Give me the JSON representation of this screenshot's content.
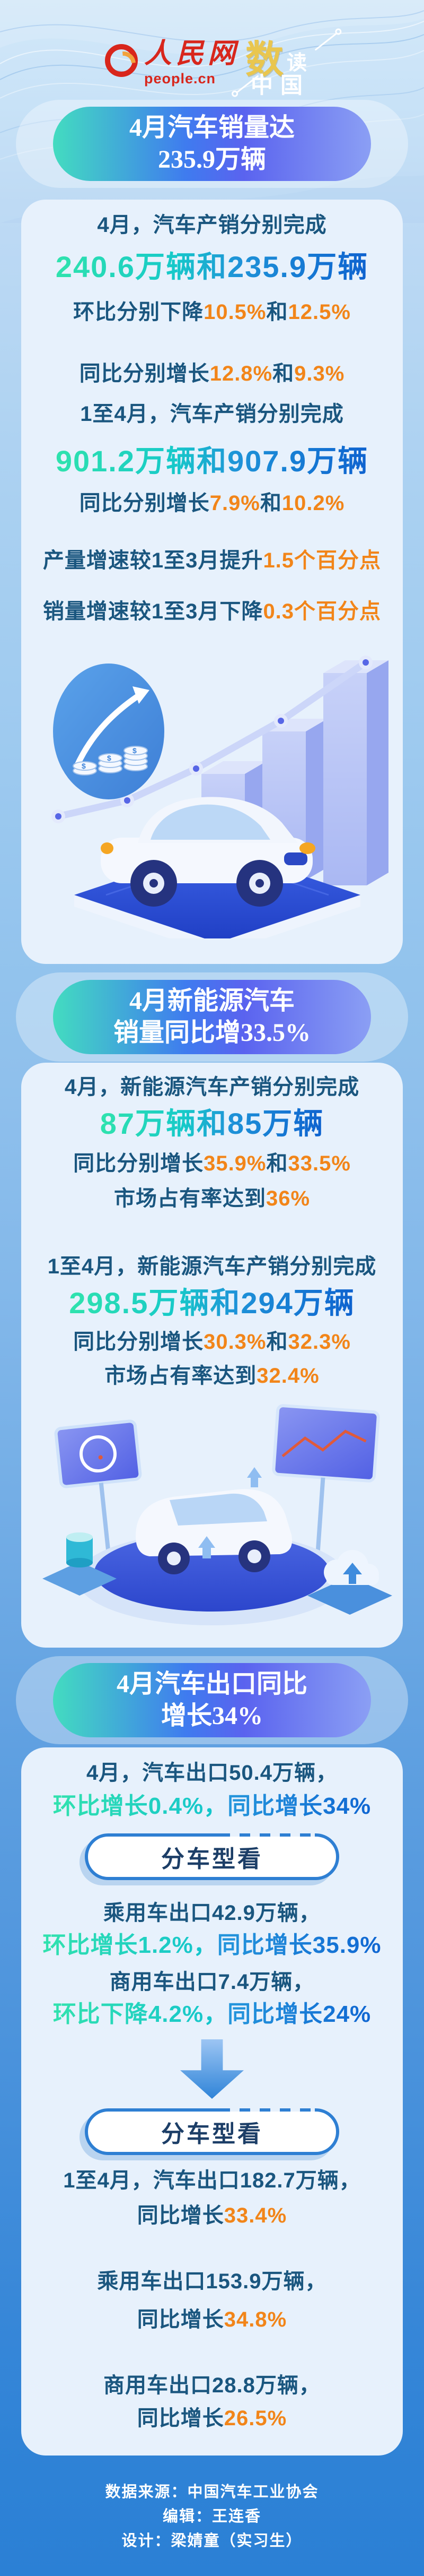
{
  "header": {
    "people_logo": {
      "cn": "人民网",
      "en": "people.cn"
    },
    "series_logo": {
      "char1": "数",
      "char2": "读",
      "char3": "中国"
    }
  },
  "colors": {
    "navy_text": "#1a567f",
    "orange_accent": "#f28519",
    "teal_accent": "#2fe3ad",
    "blue_accent": "#0f66d2",
    "pill_gradient": [
      "#43dcc0",
      "#3f7bef",
      "#8b9ff4"
    ],
    "card_background": "#e7f1fc",
    "footer_background": "#2b80d5",
    "people_logo_red": "#d8261c",
    "series_gold": "#e9c64f"
  },
  "icons": {
    "dollar": "$"
  },
  "sections": [
    {
      "pill": [
        "4月汽车销量达",
        "235.9万辆"
      ],
      "illustration": "car-bar-chart",
      "lines": [
        {
          "type": "body",
          "segments": [
            {
              "text": "4月，汽车产销分别完成",
              "role": "navy"
            }
          ]
        },
        {
          "type": "big",
          "segments": [
            {
              "text": "240.6万辆和235.9万辆",
              "role": "grad"
            }
          ]
        },
        {
          "type": "body",
          "segments": [
            {
              "text": "环比分别下降",
              "role": "navy"
            },
            {
              "text": "10.5%",
              "role": "orange"
            },
            {
              "text": "和",
              "role": "navy"
            },
            {
              "text": "12.5%",
              "role": "orange"
            }
          ]
        },
        {
          "type": "body",
          "segments": [
            {
              "text": "同比分别增长",
              "role": "navy"
            },
            {
              "text": "12.8%",
              "role": "orange"
            },
            {
              "text": "和",
              "role": "navy"
            },
            {
              "text": "9.3%",
              "role": "orange"
            }
          ]
        },
        {
          "type": "body",
          "segments": [
            {
              "text": "1至4月，汽车产销分别完成",
              "role": "navy"
            }
          ]
        },
        {
          "type": "big",
          "segments": [
            {
              "text": "901.2万辆和907.9万辆",
              "role": "grad"
            }
          ]
        },
        {
          "type": "body",
          "segments": [
            {
              "text": "同比分别增长",
              "role": "navy"
            },
            {
              "text": "7.9%",
              "role": "orange"
            },
            {
              "text": "和",
              "role": "navy"
            },
            {
              "text": "10.2%",
              "role": "orange"
            }
          ]
        },
        {
          "type": "body",
          "segments": [
            {
              "text": "产量增速较1至3月提升",
              "role": "navy"
            },
            {
              "text": "1.5个百分点",
              "role": "orange"
            }
          ]
        },
        {
          "type": "body",
          "segments": [
            {
              "text": "销量增速较1至3月下降",
              "role": "navy"
            },
            {
              "text": "0.3个百分点",
              "role": "orange"
            }
          ]
        }
      ]
    },
    {
      "pill": [
        "4月新能源汽车",
        "销量同比增33.5%"
      ],
      "illustration": "van-on-platform",
      "lines": [
        {
          "type": "body",
          "segments": [
            {
              "text": "4月，新能源汽车产销分别完成",
              "role": "navy"
            }
          ]
        },
        {
          "type": "big",
          "segments": [
            {
              "text": "87万辆和85万辆",
              "role": "grad"
            }
          ]
        },
        {
          "type": "body",
          "segments": [
            {
              "text": "同比分别增长",
              "role": "navy"
            },
            {
              "text": "35.9%",
              "role": "orange"
            },
            {
              "text": "和",
              "role": "navy"
            },
            {
              "text": "33.5%",
              "role": "orange"
            }
          ]
        },
        {
          "type": "body",
          "segments": [
            {
              "text": "市场占有率达到",
              "role": "navy"
            },
            {
              "text": "36%",
              "role": "orange"
            }
          ]
        },
        {
          "type": "body",
          "segments": [
            {
              "text": "1至4月，新能源汽车产销分别完成",
              "role": "navy"
            }
          ]
        },
        {
          "type": "big",
          "segments": [
            {
              "text": "298.5万辆和294万辆",
              "role": "grad"
            }
          ]
        },
        {
          "type": "body",
          "segments": [
            {
              "text": "同比分别增长",
              "role": "navy"
            },
            {
              "text": "30.3%",
              "role": "orange"
            },
            {
              "text": "和",
              "role": "navy"
            },
            {
              "text": "32.3%",
              "role": "orange"
            }
          ]
        },
        {
          "type": "body",
          "segments": [
            {
              "text": "市场占有率达到",
              "role": "navy"
            },
            {
              "text": "32.4%",
              "role": "orange"
            }
          ]
        }
      ]
    },
    {
      "pill": [
        "4月汽车出口同比",
        "增长34%"
      ],
      "illustration": "none",
      "lines": [
        {
          "type": "body",
          "segments": [
            {
              "text": "4月，汽车出口50.4万辆，",
              "role": "navy"
            }
          ]
        },
        {
          "type": "grad",
          "segments": [
            {
              "text": "环比增长0.4%，",
              "role": "teal"
            },
            {
              "text": "同比增长34%",
              "role": "blue"
            }
          ]
        },
        {
          "type": "button",
          "label": "分车型看"
        },
        {
          "type": "body",
          "segments": [
            {
              "text": "乘用车出口42.9万辆，",
              "role": "navy"
            }
          ]
        },
        {
          "type": "grad",
          "segments": [
            {
              "text": "环比增长1.2%，",
              "role": "teal"
            },
            {
              "text": "同比增长35.9%",
              "role": "blue"
            }
          ]
        },
        {
          "type": "body",
          "segments": [
            {
              "text": "商用车出口7.4万辆，",
              "role": "navy"
            }
          ]
        },
        {
          "type": "grad",
          "segments": [
            {
              "text": "环比下降4.2%，",
              "role": "teal"
            },
            {
              "text": "同比增长24%",
              "role": "blue"
            }
          ]
        },
        {
          "type": "arrow"
        },
        {
          "type": "button",
          "label": "分车型看"
        },
        {
          "type": "body",
          "segments": [
            {
              "text": "1至4月，汽车出口182.7万辆，",
              "role": "navy"
            }
          ]
        },
        {
          "type": "body",
          "segments": [
            {
              "text": "同比增长",
              "role": "navy"
            },
            {
              "text": "33.4%",
              "role": "orange"
            }
          ]
        },
        {
          "type": "body",
          "segments": [
            {
              "text": "乘用车出口153.9万辆，",
              "role": "navy"
            }
          ]
        },
        {
          "type": "body",
          "segments": [
            {
              "text": "同比增长",
              "role": "navy"
            },
            {
              "text": "34.8%",
              "role": "orange"
            }
          ]
        },
        {
          "type": "body",
          "segments": [
            {
              "text": "商用车出口28.8万辆，",
              "role": "navy"
            }
          ]
        },
        {
          "type": "body",
          "segments": [
            {
              "text": "同比增长",
              "role": "navy"
            },
            {
              "text": "26.5%",
              "role": "orange"
            }
          ]
        }
      ]
    }
  ],
  "footer": {
    "lines": [
      "数据来源：中国汽车工业协会",
      "编辑：王连香",
      "设计：梁婧童（实习生）"
    ]
  }
}
